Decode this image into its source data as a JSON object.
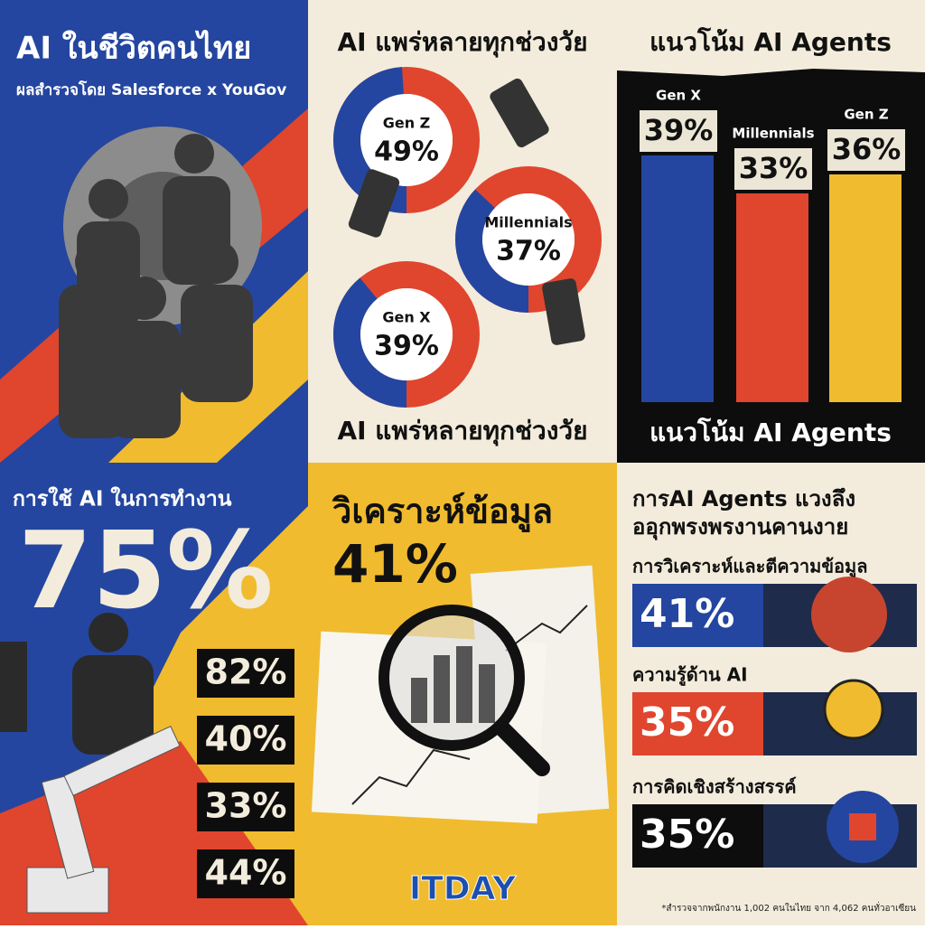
{
  "panels": {
    "intro": {
      "title": "AI ในชีวิตคนไทย",
      "subtitle": "ผลสำรวจโดย Salesforce x YouGov"
    },
    "generations": {
      "title": "AI แพร่หลายทุกช่วงวัย",
      "footer": "AI แพร่หลายทุกช่วงวัย",
      "donuts": [
        {
          "name": "Gen Z",
          "value": 49,
          "label": "49%"
        },
        {
          "name": "Millennials",
          "value": 37,
          "label": "37%"
        },
        {
          "name": "Gen X",
          "value": 39,
          "label": "39%"
        }
      ]
    },
    "agents": {
      "title": "แนวโน้ม AI Agents",
      "footer": "แนวโน้ม AI Agents",
      "bars": [
        {
          "name": "Gen X",
          "value": 39,
          "label": "39%",
          "color": "#2446a0"
        },
        {
          "name": "Millennials",
          "value": 33,
          "label": "33%",
          "color": "#e0452e"
        },
        {
          "name": "Gen Z",
          "value": 36,
          "label": "36%",
          "color": "#f0bb2e"
        }
      ]
    },
    "work": {
      "title": "การใช้ AI ในการทำงาน",
      "headline": "75%",
      "stats": [
        "82%",
        "40%",
        "33%",
        "44%"
      ]
    },
    "analysis": {
      "title": "วิเคราะห์ข้อมูล",
      "headline": "41%"
    },
    "usage": {
      "title": [
        "การAI Agents แวงลึง",
        "ออุกพรงพรงานคานงาย"
      ],
      "items": [
        {
          "label": "การวิเคราะห์และตีความข้อมูล",
          "value": "41%"
        },
        {
          "label": "ความรู้ด้าน AI",
          "value": "35%"
        },
        {
          "label": "การคิดเชิงสร้างสรรค์",
          "value": "35%"
        }
      ],
      "footnote": "*สำรวจจากพนักงาน 1,002 คนในไทย จาก 4,062 คนทั่วอาเซียน"
    },
    "logo": "ITDAY"
  }
}
